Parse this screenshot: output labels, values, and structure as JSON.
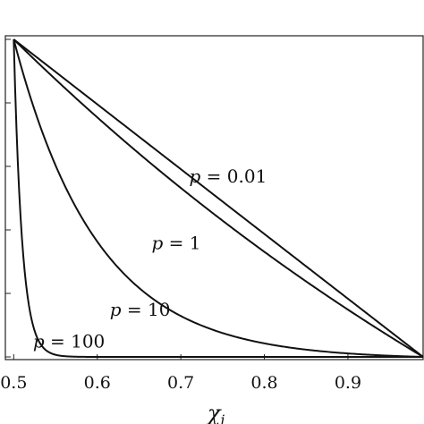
{
  "chart_data": {
    "type": "line",
    "title": "",
    "xlabel": "χ",
    "xlabel_sub": "i",
    "ylabel": "",
    "xlim": [
      0.49,
      0.99
    ],
    "ylim": [
      0,
      1
    ],
    "grid": false,
    "x_ticks": [
      0.5,
      0.6,
      0.7,
      0.8,
      0.9
    ],
    "x_tick_labels": [
      "0.5",
      "0.6",
      "0.7",
      "0.8",
      "0.9"
    ],
    "y_ticks": [
      0.0,
      0.2,
      0.4,
      0.6,
      0.8,
      1.0
    ],
    "x_start": 0.5,
    "x_end": 0.99,
    "series": [
      {
        "name": "p = 0.01",
        "p": 0.01,
        "label": {
          "prefix": "p",
          "eq": " = ",
          "value": "0.01"
        },
        "label_at": [
          0.71,
          0.55
        ]
      },
      {
        "name": "p = 1",
        "p": 1,
        "label": {
          "prefix": "p",
          "eq": " = ",
          "value": "1"
        },
        "label_at": [
          0.665,
          0.34
        ]
      },
      {
        "name": "p = 10",
        "p": 10,
        "label": {
          "prefix": "p",
          "eq": " = ",
          "value": "10"
        },
        "label_at": [
          0.615,
          0.13
        ]
      },
      {
        "name": "p = 100",
        "p": 100,
        "label": {
          "prefix": "p",
          "eq": " = ",
          "value": "100"
        },
        "label_at": [
          0.523,
          0.03
        ]
      }
    ]
  }
}
